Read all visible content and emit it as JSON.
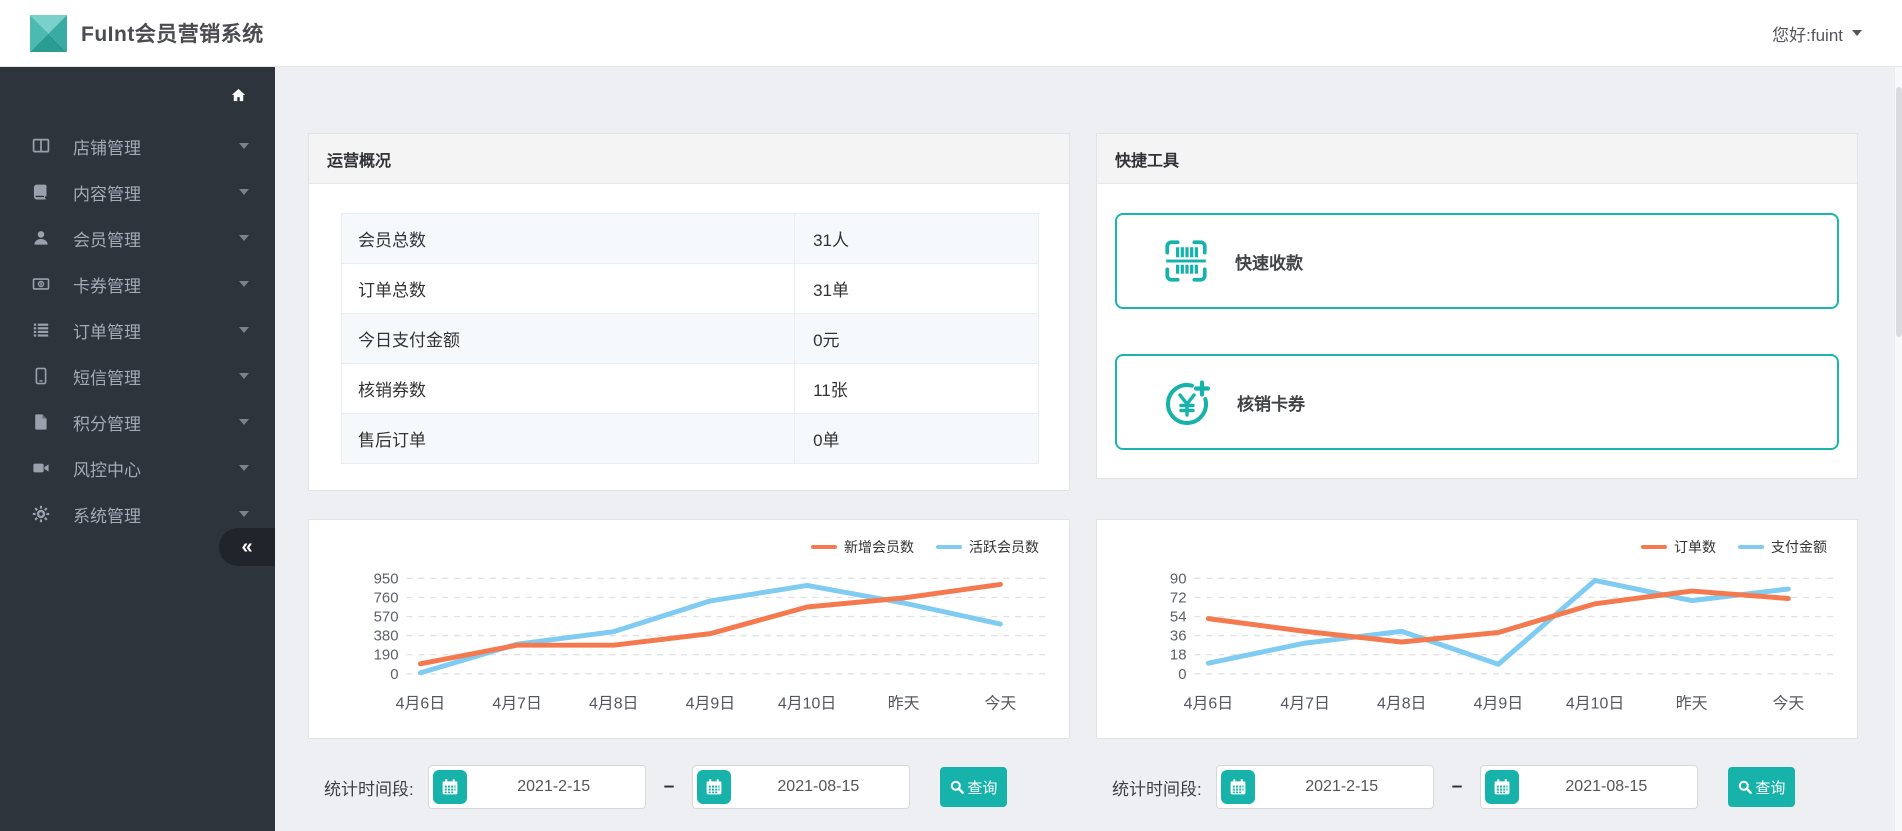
{
  "app": {
    "title": "FuInt会员营销系统",
    "greeting": "您好:fuint"
  },
  "colors": {
    "accent": "#17b3ab",
    "orange": "#f4794e",
    "blue": "#7fcbf2",
    "sidebar_bg": "#2e343c"
  },
  "sidebar": {
    "items": [
      {
        "key": "shop",
        "icon": "columns-icon",
        "label": "店铺管理"
      },
      {
        "key": "content",
        "icon": "book-icon",
        "label": "内容管理"
      },
      {
        "key": "member",
        "icon": "user-icon",
        "label": "会员管理"
      },
      {
        "key": "coupon",
        "icon": "money-icon",
        "label": "卡券管理"
      },
      {
        "key": "order",
        "icon": "list-icon",
        "label": "订单管理"
      },
      {
        "key": "sms",
        "icon": "mobile-icon",
        "label": "短信管理"
      },
      {
        "key": "points",
        "icon": "file-icon",
        "label": "积分管理"
      },
      {
        "key": "risk",
        "icon": "video-icon",
        "label": "风控中心"
      },
      {
        "key": "system",
        "icon": "gear-icon",
        "label": "系统管理"
      }
    ],
    "collapse_glyph": "«"
  },
  "overview": {
    "title": "运营概况",
    "rows": [
      {
        "label": "会员总数",
        "value": "31人"
      },
      {
        "label": "订单总数",
        "value": "31单"
      },
      {
        "label": "今日支付金额",
        "value": "0元"
      },
      {
        "label": "核销券数",
        "value": "11张"
      },
      {
        "label": "售后订单",
        "value": "0单"
      }
    ]
  },
  "tools": {
    "title": "快捷工具",
    "items": [
      {
        "key": "collect",
        "icon": "barcode-scan-icon",
        "label": "快速收款"
      },
      {
        "key": "verify",
        "icon": "yen-plus-icon",
        "label": "核销卡券"
      }
    ]
  },
  "chart_data": [
    {
      "type": "line",
      "categories": [
        "4月6日",
        "4月7日",
        "4月8日",
        "4月9日",
        "4月10日",
        "昨天",
        "今天"
      ],
      "series": [
        {
          "name": "新增会员数",
          "color": "#f4794e",
          "values": [
            100,
            285,
            285,
            400,
            665,
            755,
            890
          ]
        },
        {
          "name": "活跃会员数",
          "color": "#7fcbf2",
          "values": [
            10,
            295,
            420,
            725,
            880,
            705,
            495
          ]
        }
      ],
      "ylim": [
        0,
        950
      ],
      "yticks": [
        0,
        190,
        380,
        570,
        760,
        950
      ],
      "grid": "horizontal-dashed",
      "legend_position": "top-right"
    },
    {
      "type": "line",
      "categories": [
        "4月6日",
        "4月7日",
        "4月8日",
        "4月9日",
        "4月10日",
        "昨天",
        "今天"
      ],
      "series": [
        {
          "name": "订单数",
          "color": "#f4794e",
          "values": [
            52,
            40,
            30,
            39,
            66,
            78,
            71
          ]
        },
        {
          "name": "支付金额",
          "color": "#7fcbf2",
          "values": [
            10,
            29,
            40,
            9,
            88,
            69,
            80
          ]
        }
      ],
      "ylim": [
        0,
        90
      ],
      "yticks": [
        0,
        18,
        36,
        54,
        72,
        90
      ],
      "grid": "horizontal-dashed",
      "legend_position": "top-right"
    }
  ],
  "filters": [
    {
      "label": "统计时间段:",
      "start_date": "2021-2-15",
      "end_date": "2021-08-15",
      "search_label": "查询"
    },
    {
      "label": "统计时间段:",
      "start_date": "2021-2-15",
      "end_date": "2021-08-15",
      "search_label": "查询"
    }
  ]
}
